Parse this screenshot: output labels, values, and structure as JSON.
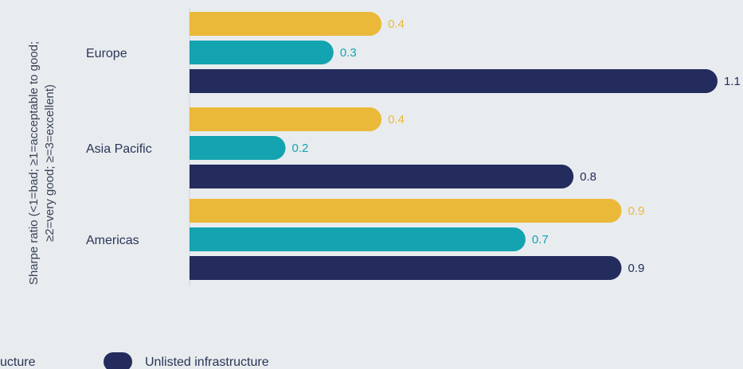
{
  "chart_data": {
    "type": "bar",
    "orientation": "horizontal",
    "categories": [
      "Europe",
      "Asia Pacific",
      "Americas"
    ],
    "series": [
      {
        "name": "",
        "color": "#ebb93a",
        "label_color": "#ebb93a",
        "values": [
          0.4,
          0.4,
          0.9
        ]
      },
      {
        "name": "",
        "color": "#14a3b0",
        "label_color": "#14a3b0",
        "values": [
          0.3,
          0.2,
          0.7
        ]
      },
      {
        "name": "Unlisted infrastructure",
        "color": "#232c5c",
        "label_color": "#232c5c",
        "values": [
          1.1,
          0.8,
          0.9
        ]
      }
    ],
    "ylabel_lines": [
      "Sharpe ratio (<1=bad; ≥1=acceptable to good;",
      "≥2=very good; ≥=3=excellent)"
    ],
    "legend_partial_text": "ucture",
    "xlim": [
      0,
      1.1
    ],
    "grid": false,
    "legend_placement": "bottom"
  }
}
